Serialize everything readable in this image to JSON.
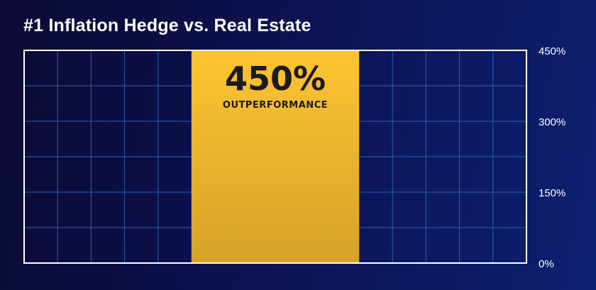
{
  "title": "#1 Inflation Hedge vs. Real Estate",
  "chart_data": {
    "type": "bar",
    "title": "#1 Inflation Hedge vs. Real Estate",
    "categories": [
      ""
    ],
    "values": [
      450
    ],
    "ylim": [
      0,
      450
    ],
    "yticks": [
      "0%",
      "150%",
      "300%",
      "450%"
    ],
    "ytick_values": [
      0,
      150,
      300,
      450
    ],
    "bar_label": "450%",
    "bar_sublabel": "OUTPERFORMANCE",
    "grid": true,
    "y_axis_side": "right",
    "colors": {
      "bar_top": "#fdc431",
      "bar_bottom": "#d6a22a",
      "grid": "#2a5fb8",
      "frame": "#ffffff",
      "bar_text": "#1c1a22",
      "tick_text": "#ffffff"
    }
  }
}
